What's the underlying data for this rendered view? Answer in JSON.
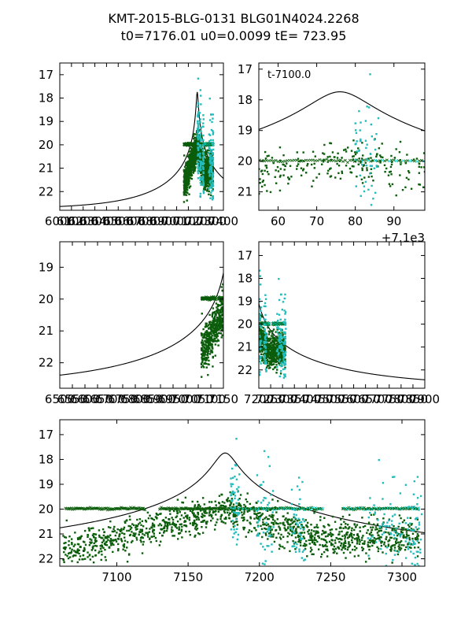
{
  "figure": {
    "title_line1": "KMT-2015-BLG-0131 BLG01N4024.2268",
    "title_line2": "t0=7176.01 u0=0.0099 tE= 723.95"
  },
  "colors": {
    "dark": "#0b5d0b",
    "light": "#22bcbc",
    "flat": "#00e5e5",
    "model": "#000000"
  },
  "chart_data": [
    {
      "id": "panel1",
      "type": "scatter",
      "xlim": [
        6000,
        7400
      ],
      "ylim": [
        22.8,
        16.5
      ],
      "yticks": [
        17,
        18,
        19,
        20,
        21,
        22
      ],
      "xticks": [
        6000,
        6100,
        6200,
        6300,
        6400,
        6500,
        6600,
        6700,
        6800,
        6900,
        7000,
        7100,
        7200,
        7300,
        7400
      ],
      "xtick_labels": [
        "6000",
        "6100",
        "6200",
        "6300",
        "6400",
        "6500",
        "6600",
        "6700",
        "6800",
        "6900",
        "7000",
        "7100",
        "7200",
        "7300",
        "7400"
      ],
      "cluster": {
        "dark_x": [
          7060,
          7180
        ],
        "light_x": [
          7180,
          7320
        ],
        "flat_x": [
          7020,
          7320
        ]
      },
      "baseline_mag": 22.75
    },
    {
      "id": "panel2",
      "type": "scatter",
      "xlim": [
        55,
        98
      ],
      "ylim": [
        21.6,
        16.8
      ],
      "yticks": [
        17,
        18,
        19,
        20,
        21
      ],
      "xticks": [
        60,
        70,
        80,
        90
      ],
      "xtick_labels": [
        "60",
        "70",
        "80",
        "90"
      ],
      "offset_label": "+7.1e3",
      "annotation": "t-7100.0",
      "baseline_mag": 22.75
    },
    {
      "id": "panel3",
      "type": "scatter",
      "xlim": [
        6500,
        7150
      ],
      "ylim": [
        22.8,
        18.2
      ],
      "yticks": [
        19,
        20,
        21,
        22
      ],
      "xticks": [
        6500,
        6550,
        6600,
        6650,
        6700,
        6750,
        6800,
        6850,
        6900,
        6950,
        7000,
        7050,
        7100,
        7150
      ],
      "xtick_labels": [
        "6500",
        "6550",
        "6600",
        "6650",
        "6700",
        "6750",
        "6800",
        "6850",
        "6900",
        "6950",
        "7000",
        "7050",
        "7100",
        "7150"
      ],
      "baseline_mag": 22.75
    },
    {
      "id": "panel4",
      "type": "scatter",
      "xlim": [
        7200,
        7900
      ],
      "ylim": [
        22.8,
        16.4
      ],
      "yticks": [
        17,
        18,
        19,
        20,
        21,
        22
      ],
      "xticks": [
        7200,
        7250,
        7300,
        7350,
        7400,
        7450,
        7500,
        7550,
        7600,
        7650,
        7700,
        7750,
        7800,
        7850,
        7900
      ],
      "xtick_labels": [
        "7200",
        "7250",
        "7300",
        "7350",
        "7400",
        "7450",
        "7500",
        "7550",
        "7600",
        "7650",
        "7700",
        "7750",
        "7800",
        "7850",
        "7900"
      ],
      "baseline_mag": 22.75
    },
    {
      "id": "panel5",
      "type": "scatter",
      "xlim": [
        7060,
        7316
      ],
      "ylim": [
        22.3,
        16.4
      ],
      "yticks": [
        17,
        18,
        19,
        20,
        21,
        22
      ],
      "xticks": [
        7100,
        7150,
        7200,
        7250,
        7300
      ],
      "xtick_labels": [
        "7100",
        "7150",
        "7200",
        "7250",
        "7300"
      ],
      "baseline_mag": 22.75
    }
  ]
}
